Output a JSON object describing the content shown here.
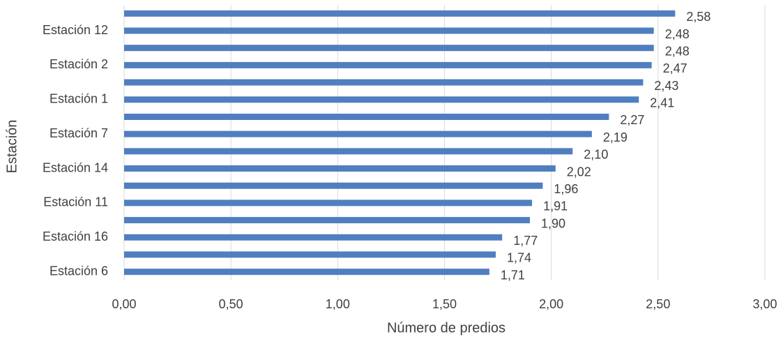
{
  "chart_data": {
    "type": "barh",
    "x_label": "Número de predios",
    "y_label": "Estación",
    "categories": [
      null,
      "Estación 12",
      null,
      "Estación 2",
      null,
      "Estación 1",
      null,
      "Estación 7",
      null,
      "Estación 14",
      null,
      "Estación 11",
      null,
      "Estación 16",
      null,
      "Estación 6"
    ],
    "values": [
      2.58,
      2.48,
      2.48,
      2.47,
      2.43,
      2.41,
      2.27,
      2.19,
      2.1,
      2.02,
      1.96,
      1.91,
      1.9,
      1.77,
      1.74,
      1.71
    ],
    "value_labels": [
      "2,58",
      "2,48",
      "2,48",
      "2,47",
      "2,43",
      "2,41",
      "2,27",
      "2,19",
      "2,10",
      "2,02",
      "1,96",
      "1,91",
      "1,90",
      "1,77",
      "1,74",
      "1,71"
    ],
    "color": "#4f7fbf",
    "xlim": [
      0,
      3
    ],
    "xticks": [
      {
        "value": 0,
        "label": "0,00"
      },
      {
        "value": 0.5,
        "label": "0,50"
      },
      {
        "value": 1,
        "label": "1,00"
      },
      {
        "value": 1.5,
        "label": "1,50"
      },
      {
        "value": 2,
        "label": "2,00"
      },
      {
        "value": 2.5,
        "label": "2,50"
      },
      {
        "value": 3,
        "label": "3,00"
      }
    ],
    "grid": true
  }
}
